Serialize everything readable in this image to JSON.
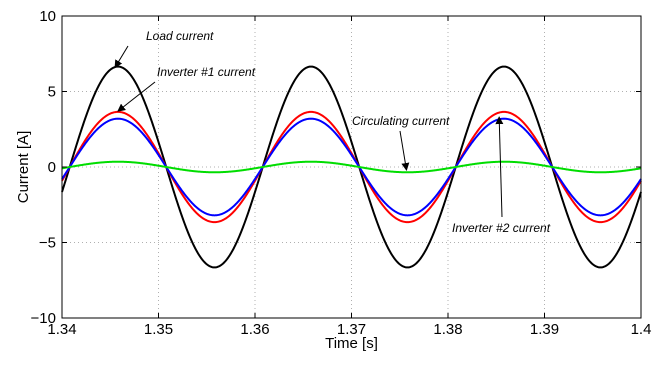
{
  "chart_data": {
    "type": "line",
    "title": "",
    "xlabel": "Time [s]",
    "ylabel": "Current [A]",
    "xlim": [
      1.34,
      1.4
    ],
    "ylim": [
      -10,
      10
    ],
    "xticks": [
      1.34,
      1.35,
      1.36,
      1.37,
      1.38,
      1.39,
      1.4
    ],
    "xtick_labels": [
      "1.34",
      "1.35",
      "1.36",
      "1.37",
      "1.38",
      "1.39",
      "1.4"
    ],
    "yticks": [
      -10,
      -5,
      0,
      5,
      10
    ],
    "ytick_labels": [
      "−10",
      "−5",
      "0",
      "5",
      "10"
    ],
    "grid": true,
    "frequency_hz": 50,
    "phase_zero_crossing": 1.3408,
    "series": [
      {
        "key": "load",
        "color": "#000000",
        "amplitude": 6.65
      },
      {
        "key": "inv1",
        "color": "#ff0000",
        "amplitude": 3.65
      },
      {
        "key": "inv2",
        "color": "#0000ff",
        "amplitude": 3.2
      },
      {
        "key": "circ",
        "color": "#00dd00",
        "amplitude": 0.35
      }
    ],
    "annotations": [
      {
        "text": "Load current",
        "arrow_to": [
          1.3455,
          6.6
        ]
      },
      {
        "text": "Inverter #1 current",
        "arrow_to": [
          1.3458,
          3.7
        ]
      },
      {
        "text": "Circulating current",
        "arrow_to": [
          1.3757,
          -0.2
        ]
      },
      {
        "text": "Inverter #2 current",
        "arrow_to": [
          1.3853,
          3.3
        ]
      }
    ]
  }
}
